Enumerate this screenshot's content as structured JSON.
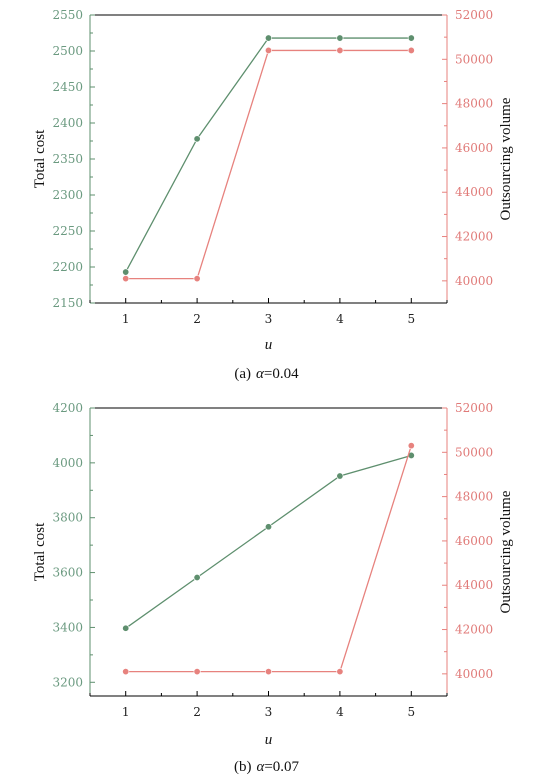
{
  "colors": {
    "left_series": "#5e8f6e",
    "right_series": "#e7827e",
    "frame": "#000000"
  },
  "chart_data": [
    {
      "type": "line",
      "caption_prefix": "(a)",
      "caption_var": "α",
      "caption_value": "=0.04",
      "xlabel": "u",
      "ylabel_left": "Total cost",
      "ylabel_right": "Outsourcing volume",
      "x": [
        1,
        2,
        3,
        4,
        5
      ],
      "x_ticks": [
        "1",
        "2",
        "3",
        "4",
        "5"
      ],
      "xlim": [
        0.5,
        5.5
      ],
      "ylim_left": [
        2150,
        2550
      ],
      "yticks_left": [
        "2150",
        "2200",
        "2250",
        "2300",
        "2350",
        "2400",
        "2450",
        "2500",
        "2550"
      ],
      "ylim_right": [
        39000,
        52000
      ],
      "yticks_right": [
        "40000",
        "42000",
        "44000",
        "46000",
        "48000",
        "50000",
        "52000"
      ],
      "series": [
        {
          "axis": "left",
          "values": [
            2193,
            2378,
            2518,
            2518,
            2518
          ]
        },
        {
          "axis": "right",
          "values": [
            40100,
            40100,
            50400,
            50400,
            50400
          ]
        }
      ]
    },
    {
      "type": "line",
      "caption_prefix": "(b)",
      "caption_var": "α",
      "caption_value": "=0.07",
      "xlabel": "u",
      "ylabel_left": "Total cost",
      "ylabel_right": "Outsourcing volume",
      "x": [
        1,
        2,
        3,
        4,
        5
      ],
      "x_ticks": [
        "1",
        "2",
        "3",
        "4",
        "5"
      ],
      "xlim": [
        0.5,
        5.5
      ],
      "ylim_left": [
        3150,
        4200
      ],
      "yticks_left": [
        "3200",
        "3400",
        "3600",
        "3800",
        "4000",
        "4200"
      ],
      "ylim_right": [
        39000,
        52000
      ],
      "yticks_right": [
        "40000",
        "42000",
        "44000",
        "46000",
        "48000",
        "50000",
        "52000"
      ],
      "series": [
        {
          "axis": "left",
          "values": [
            3397,
            3582,
            3767,
            3952,
            4027
          ]
        },
        {
          "axis": "right",
          "values": [
            40100,
            40100,
            40100,
            40100,
            50300
          ]
        }
      ]
    }
  ]
}
